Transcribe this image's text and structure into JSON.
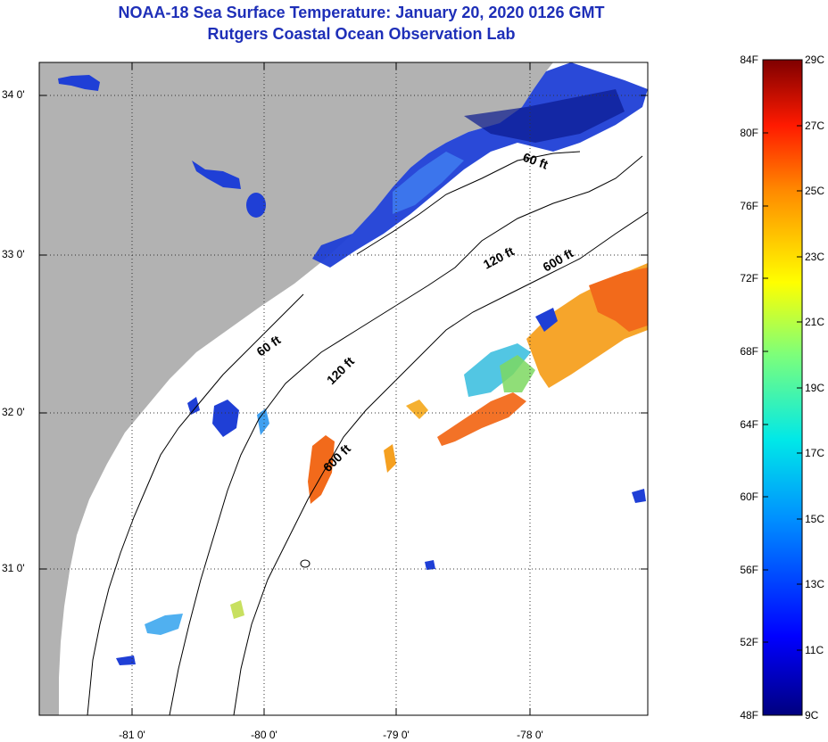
{
  "title": {
    "line1": "NOAA-18 Sea Surface Temperature:  January 20, 2020 0126 GMT",
    "line2": "Rutgers Coastal Ocean Observation Lab"
  },
  "map": {
    "lat_ticks": [
      "34 0'",
      "33 0'",
      "32 0'",
      "31 0'"
    ],
    "lon_ticks": [
      "-81 0'",
      "-80 0'",
      "-79 0'",
      "-78 0'"
    ],
    "contour_labels": [
      "60 ft",
      "120 ft",
      "600 ft",
      "60 ft",
      "120 ft",
      "600 ft"
    ],
    "colors": {
      "land": "#b2b2b2",
      "ocean_cloud": "#ffffff",
      "cold": "#1f3fd6",
      "warm": "#f26a1b"
    }
  },
  "colorbar": {
    "f_labels": [
      "84F",
      "80F",
      "76F",
      "72F",
      "68F",
      "64F",
      "60F",
      "56F",
      "52F",
      "48F"
    ],
    "c_labels": [
      "29C",
      "27C",
      "25C",
      "23C",
      "21C",
      "19C",
      "17C",
      "15C",
      "13C",
      "11C",
      "9C"
    ],
    "range_f": [
      48,
      84
    ],
    "range_c": [
      9,
      29
    ]
  }
}
